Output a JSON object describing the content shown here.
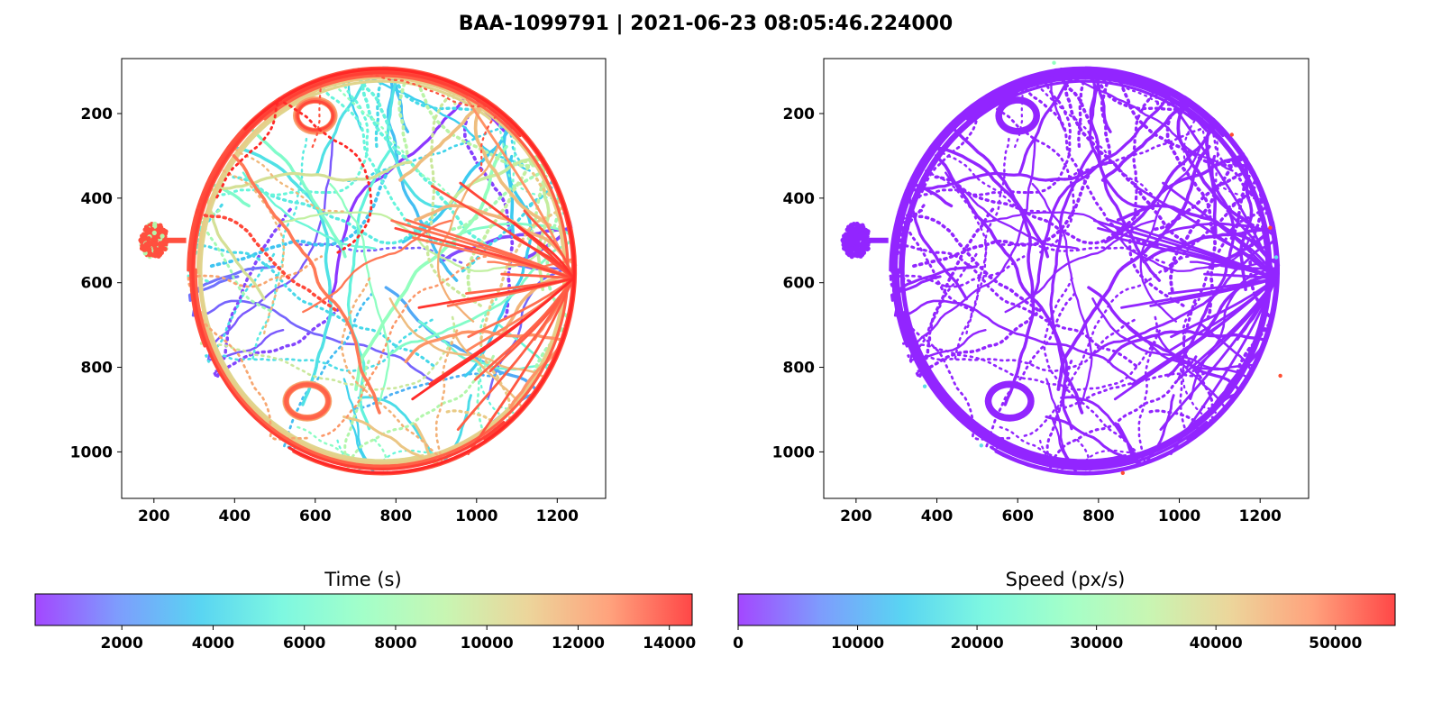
{
  "figure": {
    "title": "BAA-1099791 | 2021-06-23 08:05:46.224000"
  },
  "chart_data": [
    {
      "type": "scatter",
      "panel": "left",
      "title": "",
      "xlabel": "",
      "ylabel": "",
      "xlim": [
        120,
        1320
      ],
      "ylim": [
        1110,
        70
      ],
      "y_inverted": true,
      "xticks": [
        200,
        400,
        600,
        800,
        1000,
        1200
      ],
      "yticks": [
        200,
        400,
        600,
        800,
        1000
      ],
      "color_by": "time",
      "arena": {
        "center_x": 765,
        "center_y": 572,
        "radius": 485
      },
      "chamber": {
        "center_x": 200,
        "center_y": 500,
        "radius_x": 35,
        "radius_y": 40
      },
      "grid": false
    },
    {
      "type": "scatter",
      "panel": "right",
      "title": "",
      "xlabel": "",
      "ylabel": "",
      "xlim": [
        120,
        1320
      ],
      "ylim": [
        1110,
        70
      ],
      "y_inverted": true,
      "xticks": [
        200,
        400,
        600,
        800,
        1000,
        1200
      ],
      "yticks": [
        200,
        400,
        600,
        800,
        1000
      ],
      "color_by": "speed",
      "arena": {
        "center_x": 765,
        "center_y": 572,
        "radius": 485
      },
      "chamber": {
        "center_x": 200,
        "center_y": 500,
        "radius_x": 35,
        "radius_y": 40
      },
      "grid": false
    }
  ],
  "colorbars": [
    {
      "label": "Time (s)",
      "range": [
        100,
        14500
      ],
      "ticks": [
        "2000",
        "4000",
        "6000",
        "8000",
        "10000",
        "12000",
        "14000"
      ],
      "tick_values": [
        2000,
        4000,
        6000,
        8000,
        10000,
        12000,
        14000
      ],
      "colormap": "rainbow"
    },
    {
      "label": "Speed (px/s)",
      "range": [
        0,
        55000
      ],
      "ticks": [
        "0",
        "10000",
        "20000",
        "30000",
        "40000",
        "50000"
      ],
      "tick_values": [
        0,
        10000,
        20000,
        30000,
        40000,
        50000
      ],
      "colormap": "rainbow"
    }
  ],
  "colors": {
    "rainbow": [
      "#8000ff",
      "#4c76fc",
      "#19c4ed",
      "#4cf5d5",
      "#80ffb4",
      "#b3f295",
      "#e5c574",
      "#ff7e4a",
      "#ff0000"
    ],
    "speed_main": "#7f00ff",
    "speed_outliers": [
      "#45d7e6",
      "#ff3010",
      "#80ffb4"
    ]
  }
}
